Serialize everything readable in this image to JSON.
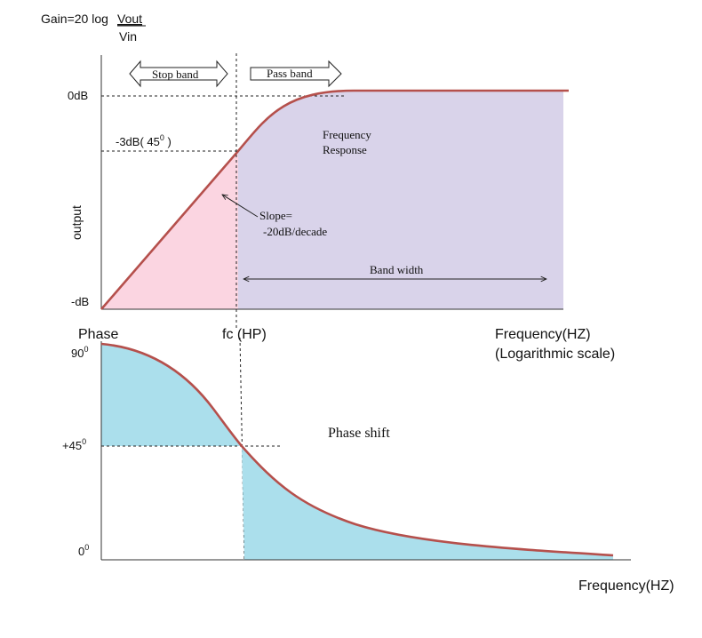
{
  "formula": {
    "prefix": "Gain=20 log",
    "numerator": "Vout",
    "denominator": "Vin"
  },
  "gain_plot": {
    "ylabel": "output",
    "tick_top": "0dB",
    "tick_mid": "-3dB( 45",
    "tick_mid_sup": "0",
    "tick_mid_close": " )",
    "tick_bottom": "-dB",
    "stop_band": "Stop band",
    "pass_band": "Pass band",
    "freq_response_line1": "Frequency",
    "freq_response_line2": "Response",
    "slope_line1": "Slope=",
    "slope_line2": "-20dB/decade",
    "bandwidth": "Band width",
    "cutoff_label": "fc (HP)",
    "xlabel_line1": "Frequency(HZ)",
    "xlabel_line2": "(Logarithmic scale)"
  },
  "phase_plot": {
    "title": "Phase",
    "tick_top": "90",
    "tick_mid": "+45",
    "tick_bottom": "0",
    "degree_sup": "0",
    "curve_label": "Phase shift",
    "xlabel": "Frequency(HZ)"
  },
  "colors": {
    "curve": "#b5504c",
    "stop_fill": "#fbd5e1",
    "pass_fill": "#d9d3ea",
    "phase_fill": "#abdfec",
    "axis": "#333333",
    "guide": "#222222"
  }
}
